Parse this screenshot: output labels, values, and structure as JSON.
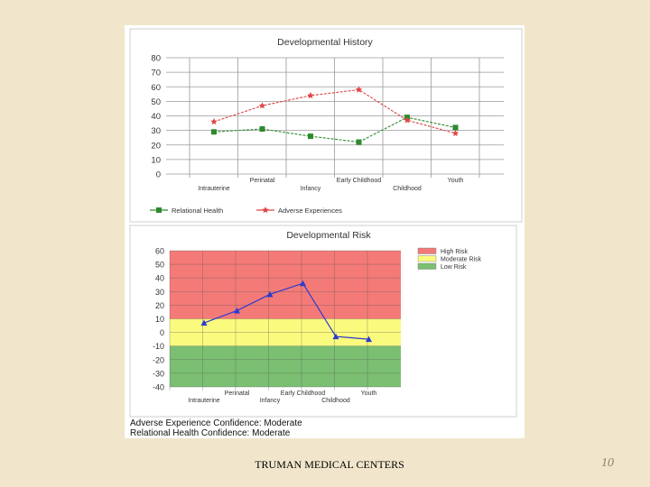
{
  "slide": {
    "footer": "TRUMAN MEDICAL CENTERS",
    "page_number": "10",
    "top_bar_colors": [
      "#f1e6cc",
      "#8a7f1f",
      "#f6a63a",
      "#87a5b5"
    ],
    "bottom_bar_colors": [
      "#8a1a0b",
      "#8a7f1f",
      "#f6a63a",
      "#87a5b5"
    ]
  },
  "chart_data": [
    {
      "type": "line",
      "title": "Developmental History",
      "categories": [
        "Intrauterine",
        "Perinatal",
        "Infancy",
        "Early Childhood",
        "Childhood",
        "Youth"
      ],
      "series": [
        {
          "name": "Relational Health",
          "color": "#2e8a2e",
          "marker": "square",
          "values": [
            29,
            31,
            26,
            22,
            39,
            32
          ]
        },
        {
          "name": "Adverse Experiences",
          "color": "#e04545",
          "marker": "star",
          "values": [
            36,
            47,
            54,
            58,
            37,
            28
          ]
        }
      ],
      "ylim": [
        0,
        80
      ],
      "yticks": [
        0,
        10,
        20,
        30,
        40,
        50,
        60,
        70,
        80
      ],
      "grid": true,
      "legend_position": "bottom"
    },
    {
      "type": "line",
      "title": "Developmental Risk",
      "categories": [
        "Intrauterine",
        "Perinatal",
        "Infancy",
        "Early Childhood",
        "Childhood",
        "Youth"
      ],
      "series": [
        {
          "name": "",
          "color": "#2b3bd1",
          "marker": "triangle",
          "values": [
            7,
            16,
            28,
            36,
            -3,
            -5
          ]
        }
      ],
      "ylim": [
        -40,
        60
      ],
      "yticks": [
        60,
        50,
        40,
        30,
        20,
        10,
        0,
        -10,
        -20,
        -30,
        -40
      ],
      "bands": [
        {
          "name": "High Risk",
          "from": 10,
          "to": 60,
          "color": "#f47a78"
        },
        {
          "name": "Moderate Risk",
          "from": -10,
          "to": 10,
          "color": "#fafa7e"
        },
        {
          "name": "Low Risk",
          "from": -40,
          "to": -10,
          "color": "#7bbf72"
        }
      ],
      "grid": true,
      "legend_position": "top-right"
    }
  ],
  "notes": [
    "Adverse Experience Confidence: Moderate",
    "Relational Health Confidence: Moderate"
  ]
}
